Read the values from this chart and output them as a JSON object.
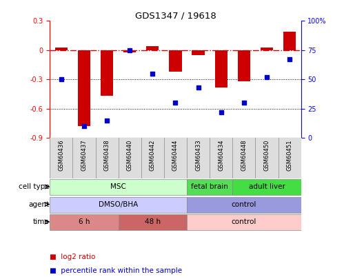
{
  "title": "GDS1347 / 19618",
  "samples": [
    "GSM60436",
    "GSM60437",
    "GSM60438",
    "GSM60440",
    "GSM60442",
    "GSM60444",
    "GSM60433",
    "GSM60434",
    "GSM60448",
    "GSM60450",
    "GSM60451"
  ],
  "log2_ratios": [
    0.03,
    -0.78,
    -0.47,
    -0.02,
    0.04,
    -0.22,
    -0.05,
    -0.38,
    -0.32,
    0.03,
    0.19
  ],
  "percentile_ranks": [
    50,
    10,
    15,
    75,
    55,
    30,
    43,
    22,
    30,
    52,
    67
  ],
  "ylim_left": [
    -0.9,
    0.3
  ],
  "ylim_right": [
    0,
    100
  ],
  "yticks_left": [
    -0.9,
    -0.6,
    -0.3,
    0.0,
    0.3
  ],
  "yticks_right": [
    0,
    25,
    50,
    75,
    100
  ],
  "bar_color": "#cc0000",
  "dot_color": "#0000cc",
  "dashed_line_color": "#cc0000",
  "grid_color": "#000000",
  "cell_type_groups": [
    {
      "label": "MSC",
      "start": 0,
      "end": 6,
      "color": "#ccffcc"
    },
    {
      "label": "fetal brain",
      "start": 6,
      "end": 8,
      "color": "#55dd55"
    },
    {
      "label": "adult liver",
      "start": 8,
      "end": 11,
      "color": "#44dd44"
    }
  ],
  "agent_groups": [
    {
      "label": "DMSO/BHA",
      "start": 0,
      "end": 6,
      "color": "#ccccff"
    },
    {
      "label": "control",
      "start": 6,
      "end": 11,
      "color": "#9999dd"
    }
  ],
  "time_groups": [
    {
      "label": "6 h",
      "start": 0,
      "end": 3,
      "color": "#dd8888"
    },
    {
      "label": "48 h",
      "start": 3,
      "end": 6,
      "color": "#cc6666"
    },
    {
      "label": "control",
      "start": 6,
      "end": 11,
      "color": "#ffcccc"
    }
  ],
  "row_labels": [
    "cell type",
    "agent",
    "time"
  ],
  "legend_bar_color": "#cc0000",
  "legend_dot_color": "#0000cc",
  "legend_bar_label": "log2 ratio",
  "legend_dot_label": "percentile rank within the sample",
  "bg_color": "#ffffff"
}
